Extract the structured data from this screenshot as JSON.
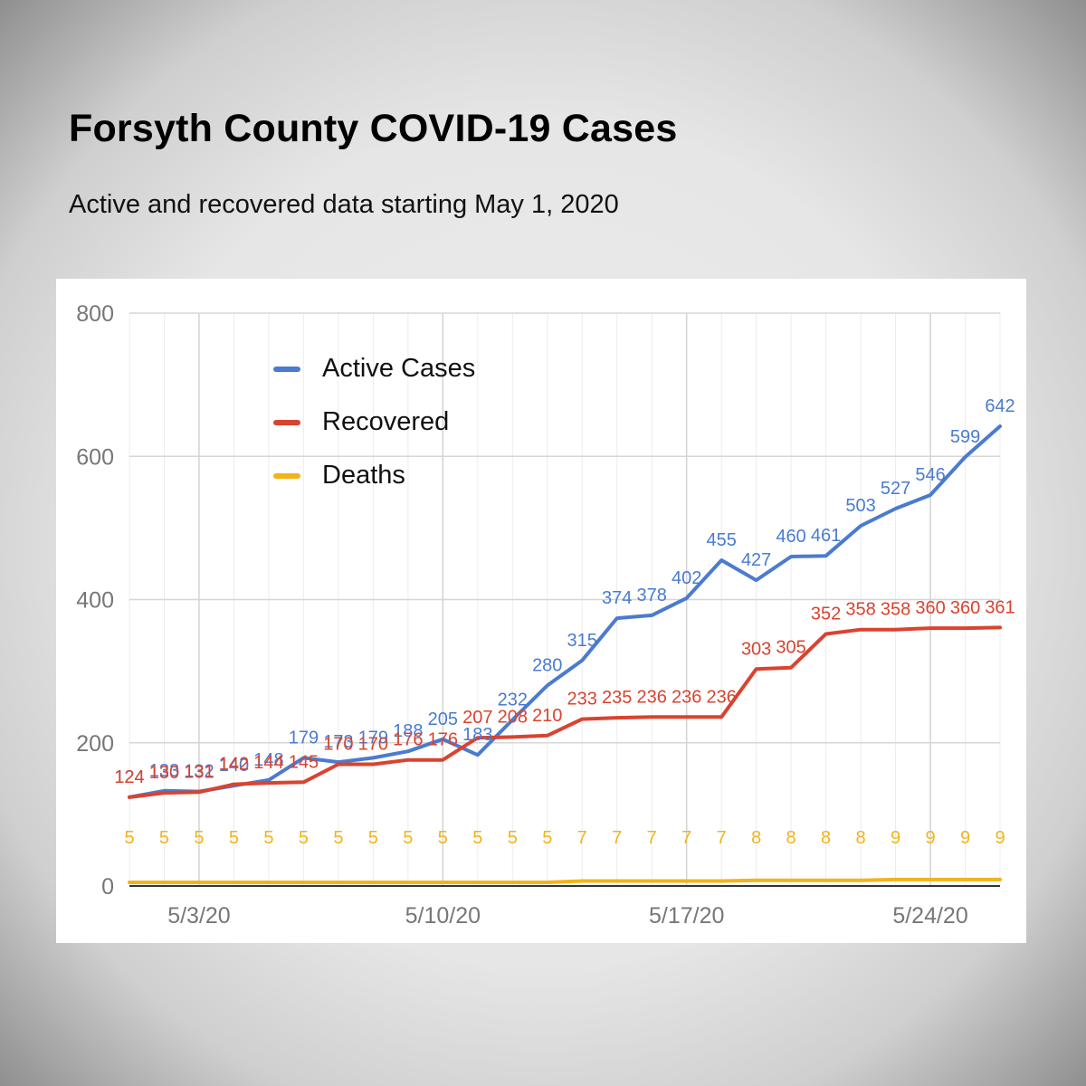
{
  "header": {
    "title": "Forsyth County COVID-19 Cases",
    "subtitle": "Active and recovered data starting May 1, 2020"
  },
  "colors": {
    "active": "#4a7bd0",
    "recovered": "#d9432f",
    "deaths": "#f2b418",
    "grid": "#d6d6d6",
    "axis_text": "#777777"
  },
  "legend": [
    {
      "label": "Active Cases",
      "color": "#4a7bd0"
    },
    {
      "label": "Recovered",
      "color": "#d9432f"
    },
    {
      "label": "Deaths",
      "color": "#f2b418"
    }
  ],
  "chart_data": {
    "type": "line",
    "title": "",
    "xlabel": "",
    "ylabel": "",
    "ylim": [
      0,
      800
    ],
    "yticks": [
      0,
      200,
      400,
      600,
      800
    ],
    "x": [
      "5/1/20",
      "5/2/20",
      "5/3/20",
      "5/4/20",
      "5/5/20",
      "5/6/20",
      "5/7/20",
      "5/8/20",
      "5/9/20",
      "5/10/20",
      "5/11/20",
      "5/12/20",
      "5/13/20",
      "5/14/20",
      "5/15/20",
      "5/16/20",
      "5/17/20",
      "5/18/20",
      "5/19/20",
      "5/20/20",
      "5/21/20",
      "5/22/20",
      "5/23/20",
      "5/24/20",
      "5/25/20",
      "5/26/20"
    ],
    "xticks": [
      {
        "index": 2,
        "label": "5/3/20"
      },
      {
        "index": 9,
        "label": "5/10/20"
      },
      {
        "index": 16,
        "label": "5/17/20"
      },
      {
        "index": 23,
        "label": "5/24/20"
      }
    ],
    "grid": true,
    "legend_position": "top-left",
    "series": [
      {
        "name": "Active Cases",
        "values": [
          124,
          133,
          132,
          140,
          148,
          179,
          173,
          179,
          188,
          205,
          183,
          232,
          280,
          315,
          374,
          378,
          402,
          455,
          427,
          460,
          461,
          503,
          527,
          546,
          599,
          642
        ]
      },
      {
        "name": "Recovered",
        "values": [
          124,
          130,
          131,
          142,
          144,
          145,
          170,
          170,
          176,
          176,
          207,
          208,
          210,
          233,
          235,
          236,
          236,
          236,
          303,
          305,
          352,
          358,
          358,
          360,
          360,
          361
        ]
      },
      {
        "name": "Deaths",
        "values": [
          5,
          5,
          5,
          5,
          5,
          5,
          5,
          5,
          5,
          5,
          5,
          5,
          5,
          7,
          7,
          7,
          7,
          7,
          8,
          8,
          8,
          8,
          9,
          9,
          9,
          9
        ]
      }
    ]
  }
}
